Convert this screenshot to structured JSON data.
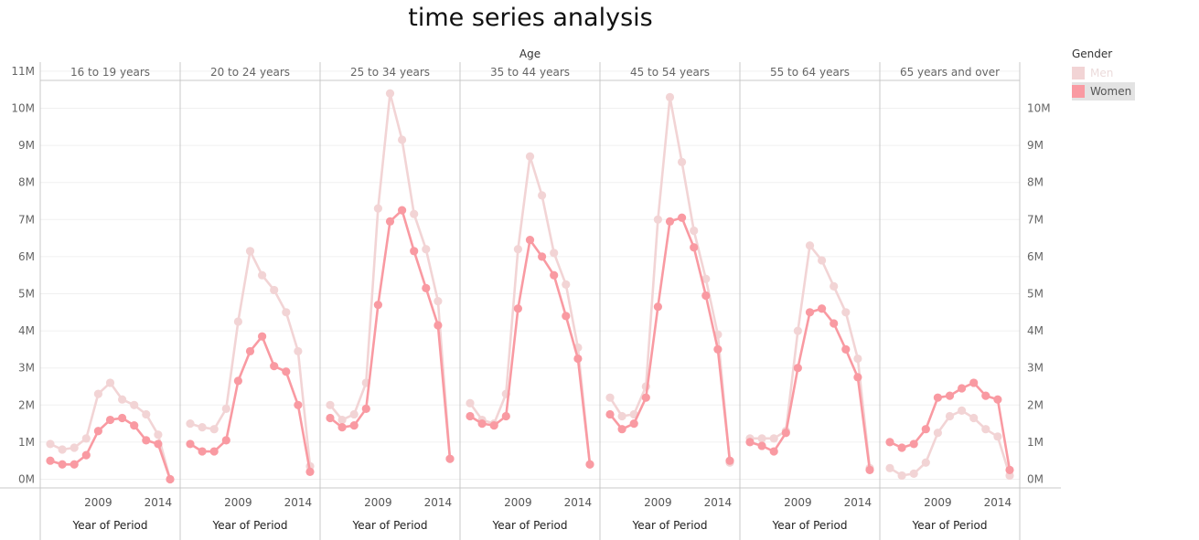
{
  "title": "time series analysis",
  "legend": {
    "title": "Gender",
    "items": [
      {
        "label": "Men",
        "color": "#f2d4d5",
        "text_color": "#ecdcdc",
        "highlight": false
      },
      {
        "label": "Women",
        "color": "#f99aa2",
        "text_color": "#555555",
        "highlight": true
      }
    ]
  },
  "chart_data": {
    "type": "line",
    "column_header": "Age",
    "panels": [
      "16 to 19 years",
      "20 to 24 years",
      "25 to 34 years",
      "35 to 44 years",
      "45 to 54 years",
      "55 to 64 years",
      "65 years and over"
    ],
    "x": [
      2005,
      2006,
      2007,
      2008,
      2009,
      2010,
      2011,
      2012,
      2013,
      2014,
      2015
    ],
    "x_ticks": [
      "2009",
      "2014"
    ],
    "xlabel": "Year of Period",
    "ylim": [
      0,
      11
    ],
    "y_ticks_left": [
      "0M",
      "1M",
      "2M",
      "3M",
      "4M",
      "5M",
      "6M",
      "7M",
      "8M",
      "9M",
      "10M",
      "11M"
    ],
    "y_ticks_right": [
      "0M",
      "1M",
      "2M",
      "3M",
      "4M",
      "5M",
      "6M",
      "7M",
      "8M",
      "9M",
      "10M"
    ],
    "y_unit": "M",
    "grid": true,
    "legend_position": "top-right",
    "series": [
      {
        "name": "Men",
        "color": "#f2d4d5",
        "values": [
          [
            0.95,
            0.8,
            0.85,
            1.1,
            2.3,
            2.6,
            2.15,
            2.0,
            1.75,
            1.2,
            0.0
          ],
          [
            1.5,
            1.4,
            1.35,
            1.9,
            4.25,
            6.15,
            5.5,
            5.1,
            4.5,
            3.45,
            0.35
          ],
          [
            2.0,
            1.6,
            1.75,
            2.6,
            7.3,
            10.4,
            9.15,
            7.15,
            6.2,
            4.8,
            0.55
          ],
          [
            2.05,
            1.6,
            1.5,
            2.3,
            6.2,
            8.7,
            7.65,
            6.1,
            5.25,
            3.55,
            0.4
          ],
          [
            2.2,
            1.7,
            1.75,
            2.5,
            7.0,
            10.3,
            8.55,
            6.7,
            5.4,
            3.9,
            0.45
          ],
          [
            1.1,
            1.1,
            1.1,
            1.3,
            4.0,
            6.3,
            5.9,
            5.2,
            4.5,
            3.25,
            0.3
          ],
          [
            0.3,
            0.1,
            0.15,
            0.45,
            1.25,
            1.7,
            1.85,
            1.65,
            1.35,
            1.15,
            0.1
          ]
        ]
      },
      {
        "name": "Women",
        "color": "#f99aa2",
        "values": [
          [
            0.5,
            0.4,
            0.4,
            0.65,
            1.3,
            1.6,
            1.65,
            1.45,
            1.05,
            0.95,
            0.0
          ],
          [
            0.95,
            0.75,
            0.75,
            1.05,
            2.65,
            3.45,
            3.85,
            3.05,
            2.9,
            2.0,
            0.2
          ],
          [
            1.65,
            1.4,
            1.45,
            1.9,
            4.7,
            6.95,
            7.25,
            6.15,
            5.15,
            4.15,
            0.55
          ],
          [
            1.7,
            1.5,
            1.45,
            1.7,
            4.6,
            6.45,
            6.0,
            5.5,
            4.4,
            3.25,
            0.4
          ],
          [
            1.75,
            1.35,
            1.5,
            2.2,
            4.65,
            6.95,
            7.05,
            6.25,
            4.95,
            3.5,
            0.5
          ],
          [
            1.0,
            0.9,
            0.75,
            1.25,
            3.0,
            4.5,
            4.6,
            4.2,
            3.5,
            2.75,
            0.25
          ],
          [
            1.0,
            0.85,
            0.95,
            1.35,
            2.2,
            2.25,
            2.45,
            2.6,
            2.25,
            2.15,
            0.25
          ]
        ]
      }
    ]
  }
}
